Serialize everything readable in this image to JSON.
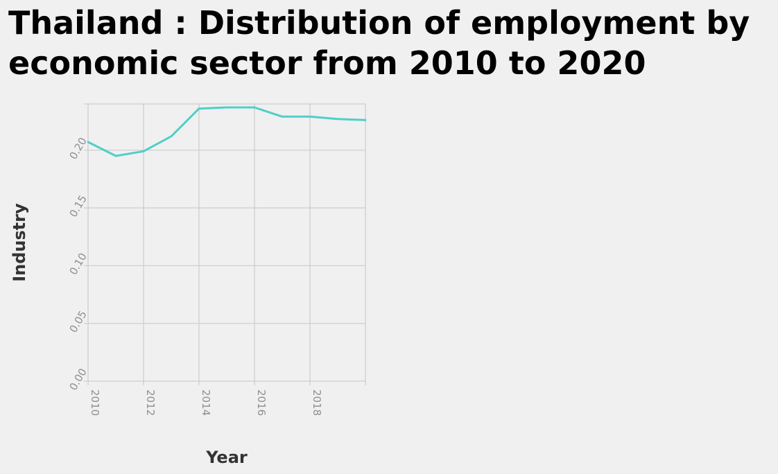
{
  "chart_data": {
    "type": "line",
    "title": "Thailand : Distribution of employment by economic sector from 2010 to 2020",
    "xlabel": "Year",
    "ylabel": "Industry",
    "x": [
      2010,
      2011,
      2012,
      2013,
      2014,
      2015,
      2016,
      2017,
      2018,
      2019,
      2020
    ],
    "series": [
      {
        "values": [
          0.207,
          0.195,
          0.199,
          0.212,
          0.236,
          0.237,
          0.237,
          0.229,
          0.229,
          0.227,
          0.226
        ]
      }
    ],
    "xlim": [
      2010,
      2020
    ],
    "ylim": [
      0,
      0.24
    ],
    "xticks": [
      "2010",
      "2012",
      "2014",
      "2016",
      "2018"
    ],
    "xtick_values": [
      2010,
      2012,
      2014,
      2016,
      2018
    ],
    "yticks": [
      "0.00",
      "0.05",
      "0.10",
      "0.15",
      "0.20"
    ],
    "ytick_values": [
      0,
      0.05,
      0.1,
      0.15,
      0.2
    ],
    "grid": true,
    "colors": {
      "line": "#4ecfc8",
      "grid": "#cccccc",
      "background": "#f0f0f0"
    }
  }
}
